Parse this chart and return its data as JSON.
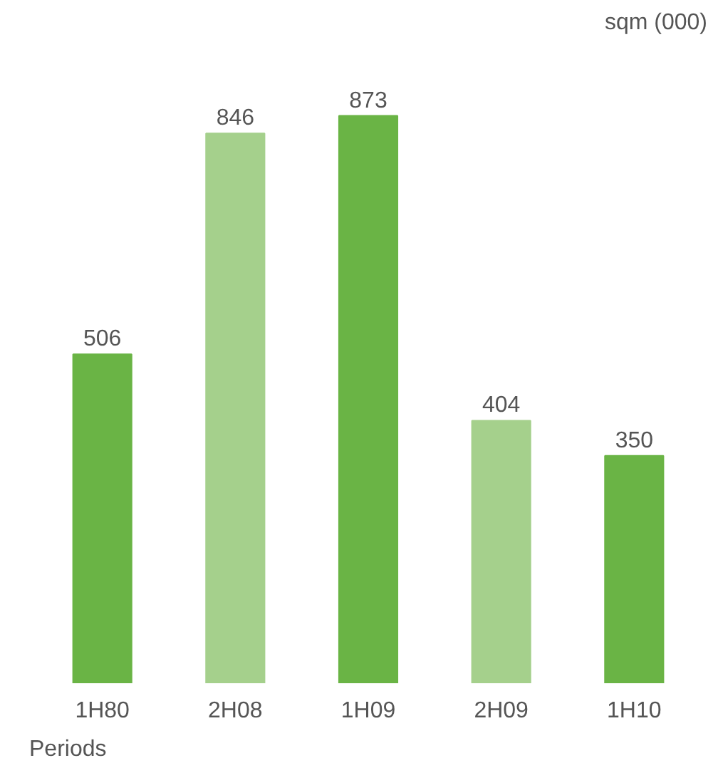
{
  "chart_data": {
    "type": "bar",
    "ylabel": "sqm (000)",
    "xlabel": "Periods",
    "categories": [
      "1H80",
      "2H08",
      "1H09",
      "2H09",
      "1H10"
    ],
    "values": [
      506,
      846,
      873,
      404,
      350
    ],
    "colors": [
      "#6ab445",
      "#a5d08c",
      "#6ab445",
      "#a5d08c",
      "#6ab445"
    ],
    "data_labels": true
  }
}
